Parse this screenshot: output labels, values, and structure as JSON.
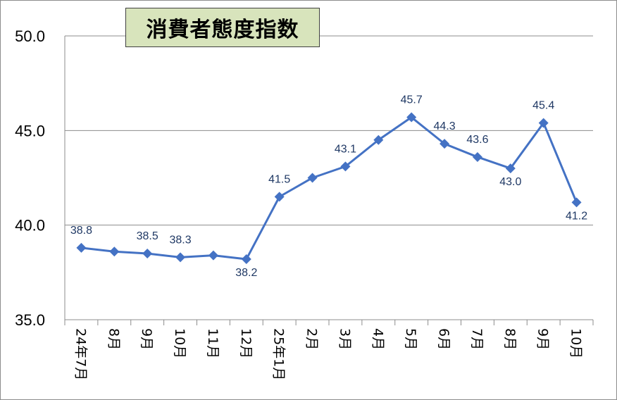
{
  "chart_data": {
    "type": "line",
    "title": "消費者態度指数",
    "categories": [
      "24年7月",
      "8月",
      "9月",
      "10月",
      "11月",
      "12月",
      "25年1月",
      "2月",
      "3月",
      "4月",
      "5月",
      "6月",
      "7月",
      "8月",
      "9月",
      "10月"
    ],
    "series": [
      {
        "values": [
          38.8,
          38.6,
          38.5,
          38.3,
          38.4,
          38.2,
          41.5,
          42.5,
          43.1,
          44.5,
          45.7,
          44.3,
          43.6,
          43.0,
          45.4,
          41.2
        ]
      }
    ],
    "data_labels": [
      {
        "index": 0,
        "text": "38.8",
        "position": "above"
      },
      {
        "index": 2,
        "text": "38.5",
        "position": "above"
      },
      {
        "index": 3,
        "text": "38.3",
        "position": "above"
      },
      {
        "index": 5,
        "text": "38.2",
        "position": "below"
      },
      {
        "index": 6,
        "text": "41.5",
        "position": "above"
      },
      {
        "index": 8,
        "text": "43.1",
        "position": "above"
      },
      {
        "index": 10,
        "text": "45.7",
        "position": "above"
      },
      {
        "index": 11,
        "text": "44.3",
        "position": "above"
      },
      {
        "index": 12,
        "text": "43.6",
        "position": "above"
      },
      {
        "index": 13,
        "text": "43.0",
        "position": "below"
      },
      {
        "index": 14,
        "text": "45.4",
        "position": "above"
      },
      {
        "index": 15,
        "text": "41.2",
        "position": "below"
      }
    ],
    "yticks": [
      "35.0",
      "40.0",
      "45.0",
      "50.0"
    ],
    "ylim": [
      35,
      50
    ],
    "grid": true,
    "legend": "none",
    "series_color": "#4472c4",
    "label_color": "#1f3864",
    "title_background": "#d8e4bc"
  }
}
